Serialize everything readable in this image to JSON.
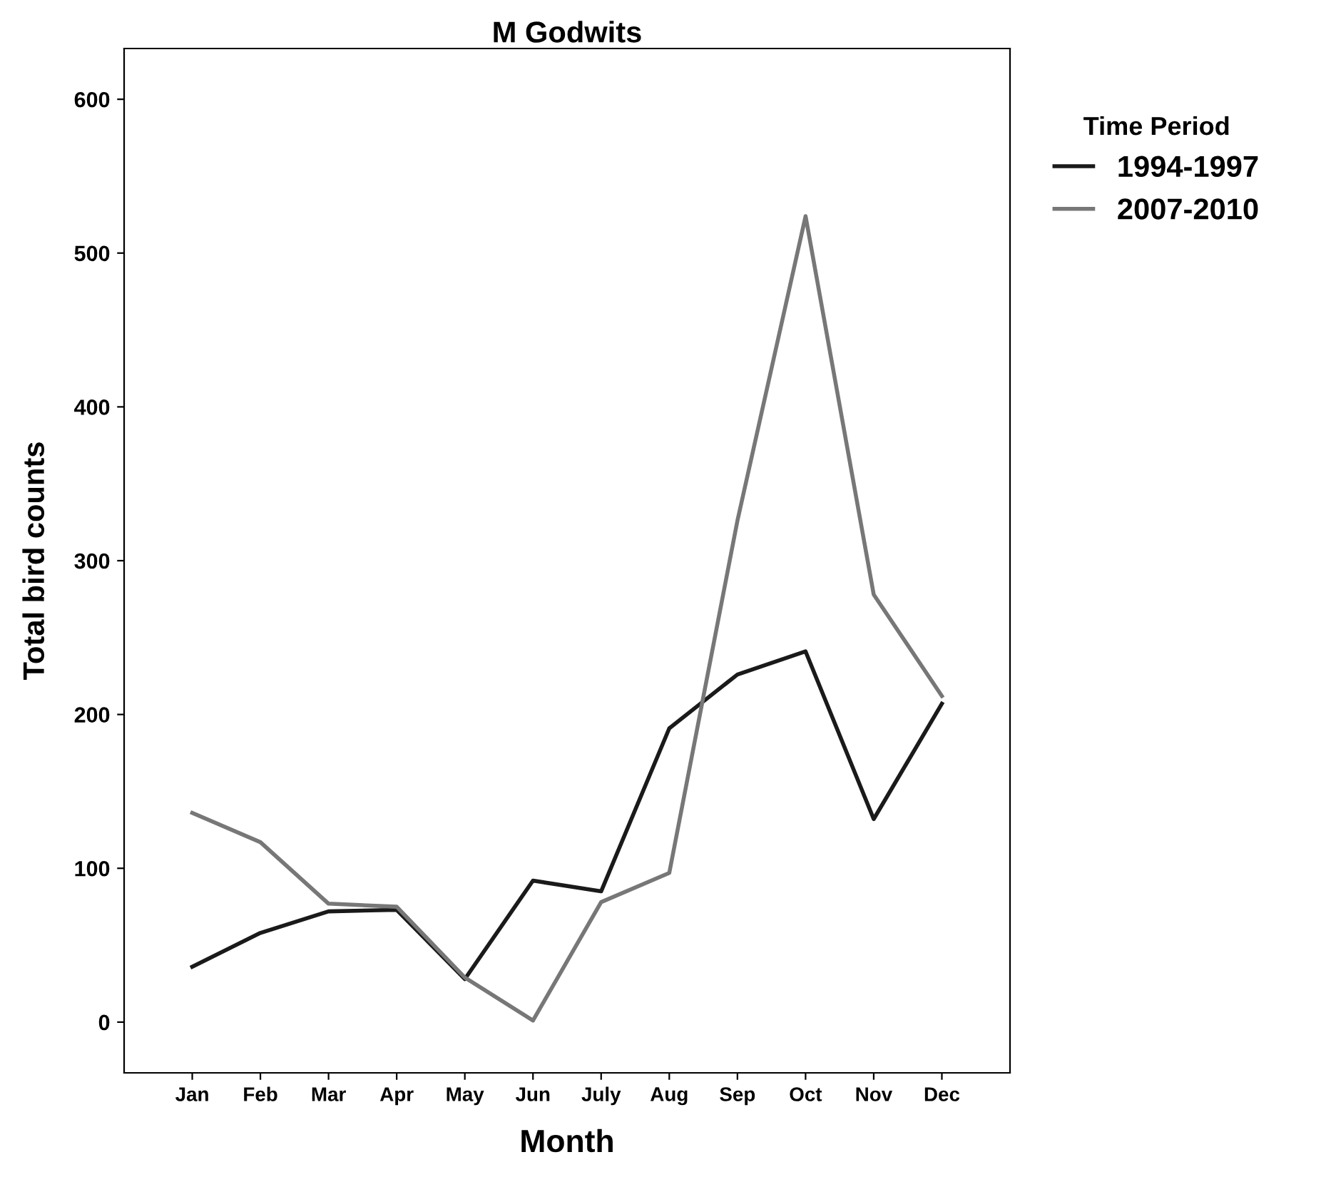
{
  "chart_data": {
    "type": "line",
    "title": "M Godwits",
    "xlabel": "Month",
    "ylabel": "Total bird counts",
    "legend_title": "Time Period",
    "legend": "right",
    "categories": [
      "Jan",
      "Feb",
      "Mar",
      "Apr",
      "May",
      "Jun",
      "July",
      "Aug",
      "Sep",
      "Oct",
      "Nov",
      "Dec"
    ],
    "series": [
      {
        "name": "1994-1997",
        "color": "#1a1a1a",
        "values": [
          36,
          58,
          72,
          73,
          28,
          92,
          85,
          191,
          226,
          241,
          132,
          207
        ]
      },
      {
        "name": "2007-2010",
        "color": "#777777",
        "values": [
          136,
          117,
          77,
          75,
          29,
          1,
          78,
          97,
          326,
          524,
          278,
          212
        ]
      }
    ],
    "ylim": [
      -33,
      633
    ],
    "yticks": [
      0,
      100,
      200,
      300,
      400,
      500,
      600
    ],
    "grid": false
  }
}
